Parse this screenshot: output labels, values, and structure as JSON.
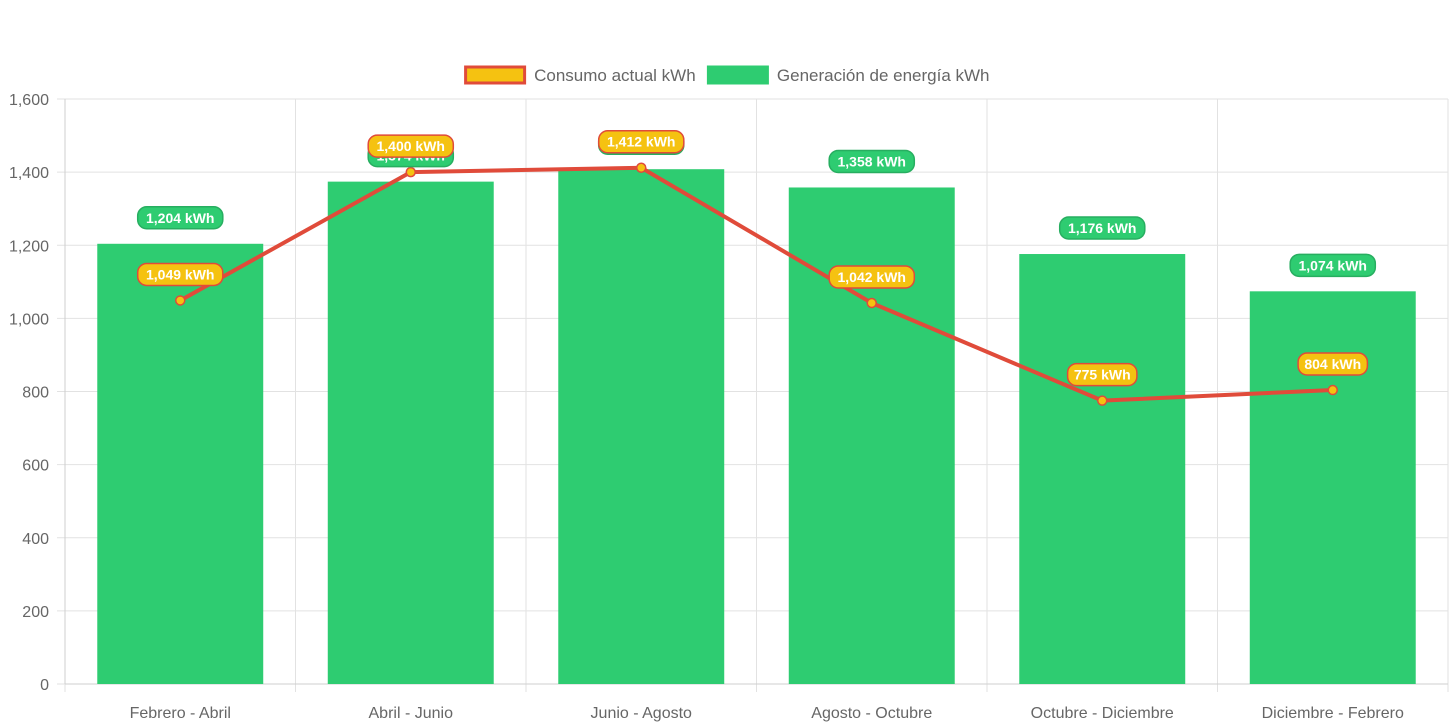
{
  "chart_data": {
    "type": "bar",
    "categories": [
      "Febrero - Abril",
      "Abril - Junio",
      "Junio - Agosto",
      "Agosto - Octubre",
      "Octubre - Diciembre",
      "Diciembre - Febrero"
    ],
    "ylim": [
      0,
      1600
    ],
    "yticks": [
      0,
      200,
      400,
      600,
      800,
      1000,
      1200,
      1400,
      1600
    ],
    "grid": true,
    "legend_position": "top-center",
    "title": "",
    "xlabel": "",
    "ylabel": "",
    "series": [
      {
        "name": "Consumo actual kWh",
        "type": "line",
        "values": [
          1049,
          1400,
          1412,
          1042,
          775,
          804
        ],
        "labels": [
          "1,049 kWh",
          "1,400 kWh",
          "1,412 kWh",
          "1,042 kWh",
          "775 kWh",
          "804 kWh"
        ],
        "line_color": "#e04b3a",
        "fill_color": "#f5c211"
      },
      {
        "name": "Generación de energía kWh",
        "type": "bar",
        "values": [
          1204,
          1374,
          1408,
          1358,
          1176,
          1074
        ],
        "labels": [
          "1,204 kWh",
          "1,374 kWh",
          "1,408 kWh",
          "1,358 kWh",
          "1,176 kWh",
          "1,074 kWh"
        ],
        "color": "#2ecc71"
      }
    ]
  }
}
